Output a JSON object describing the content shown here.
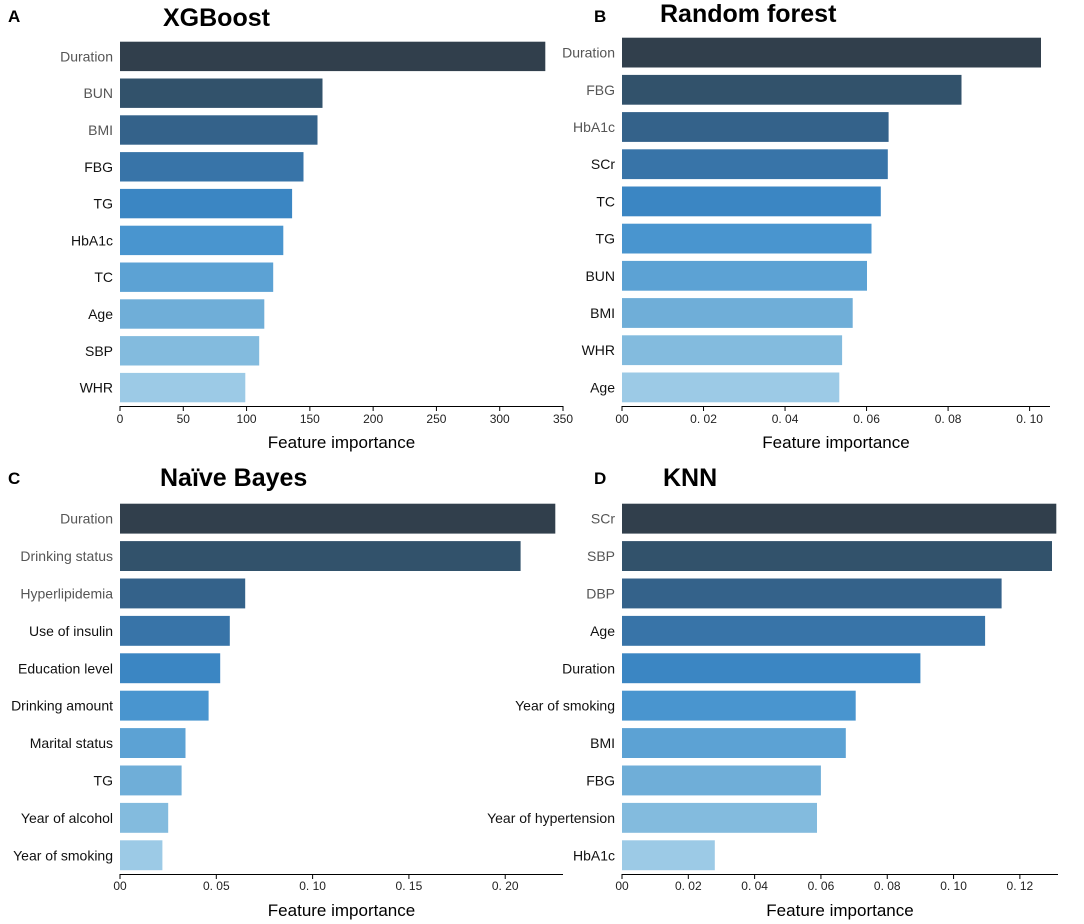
{
  "colors": {
    "dark": "#2f3f4d",
    "light": "#9ccae6",
    "ramp": [
      "#313f4c",
      "#32526b",
      "#34628a",
      "#3874a8",
      "#3b86c3",
      "#4995cf",
      "#5ca2d4",
      "#6faed8",
      "#83bbde",
      "#9ccae6"
    ],
    "label_dark": "#555555",
    "label_black": "#111111"
  },
  "chart_data": [
    {
      "panel": "A",
      "type": "bar",
      "orientation": "horizontal",
      "title": "XGBoost",
      "xlabel": "Feature importance",
      "ylabel": "",
      "categories": [
        "Duration",
        "BUN",
        "BMI",
        "FBG",
        "TG",
        "HbA1c",
        "TC",
        "Age",
        "SBP",
        "WHR"
      ],
      "values": [
        336,
        160,
        156,
        145,
        136,
        129,
        121,
        114,
        110,
        99
      ],
      "xlim": [
        0,
        350
      ],
      "ticks": [
        0,
        50,
        100,
        150,
        200,
        250,
        300,
        350
      ],
      "tick_labels": [
        "0",
        "50",
        "100",
        "150",
        "200",
        "250",
        "300",
        "350"
      ]
    },
    {
      "panel": "B",
      "type": "bar",
      "orientation": "horizontal",
      "title": "Random forest",
      "xlabel": "Feature importance",
      "ylabel": "",
      "categories": [
        "Duration",
        "FBG",
        "HbA1c",
        "SCr",
        "TC",
        "TG",
        "BUN",
        "BMI",
        "WHR",
        "Age"
      ],
      "values": [
        0.1028,
        0.0833,
        0.0654,
        0.0652,
        0.0635,
        0.0612,
        0.0601,
        0.0566,
        0.054,
        0.0533
      ],
      "xlim": [
        0,
        0.105
      ],
      "ticks": [
        0,
        0.02,
        0.04,
        0.06,
        0.08,
        0.1
      ],
      "tick_labels": [
        "00",
        "0. 02",
        "0. 04",
        "0. 06",
        "0. 08",
        "0. 10"
      ]
    },
    {
      "panel": "C",
      "type": "bar",
      "orientation": "horizontal",
      "title": "Naïve Bayes",
      "xlabel": "Feature importance",
      "ylabel": "",
      "categories": [
        "Duration",
        "Drinking status",
        "Hyperlipidemia",
        "Use of insulin",
        "Education level",
        "Drinking amount",
        "Marital status",
        "TG",
        "Year of alcohol",
        "Year of smoking"
      ],
      "values": [
        0.226,
        0.208,
        0.065,
        0.057,
        0.052,
        0.046,
        0.034,
        0.032,
        0.025,
        0.022
      ],
      "xlim": [
        0,
        0.23
      ],
      "ticks": [
        0,
        0.05,
        0.1,
        0.15,
        0.2
      ],
      "tick_labels": [
        "00",
        "0. 05",
        "0. 10",
        "0. 15",
        "0. 20"
      ]
    },
    {
      "panel": "D",
      "type": "bar",
      "orientation": "horizontal",
      "title": "KNN",
      "xlabel": "Feature importance",
      "ylabel": "",
      "categories": [
        "SCr",
        "SBP",
        "DBP",
        "Age",
        "Duration",
        "Year of smoking",
        "BMI",
        "FBG",
        "Year of hypertension",
        "HbA1c"
      ],
      "values": [
        0.131,
        0.1297,
        0.1145,
        0.1095,
        0.09,
        0.0705,
        0.0675,
        0.06,
        0.0588,
        0.028
      ],
      "xlim": [
        0,
        0.1315
      ],
      "ticks": [
        0,
        0.02,
        0.04,
        0.06,
        0.08,
        0.1,
        0.12
      ],
      "tick_labels": [
        "00",
        "0. 02",
        "0. 04",
        "0. 06",
        "0. 08",
        "0. 10",
        "0. 12"
      ]
    }
  ]
}
